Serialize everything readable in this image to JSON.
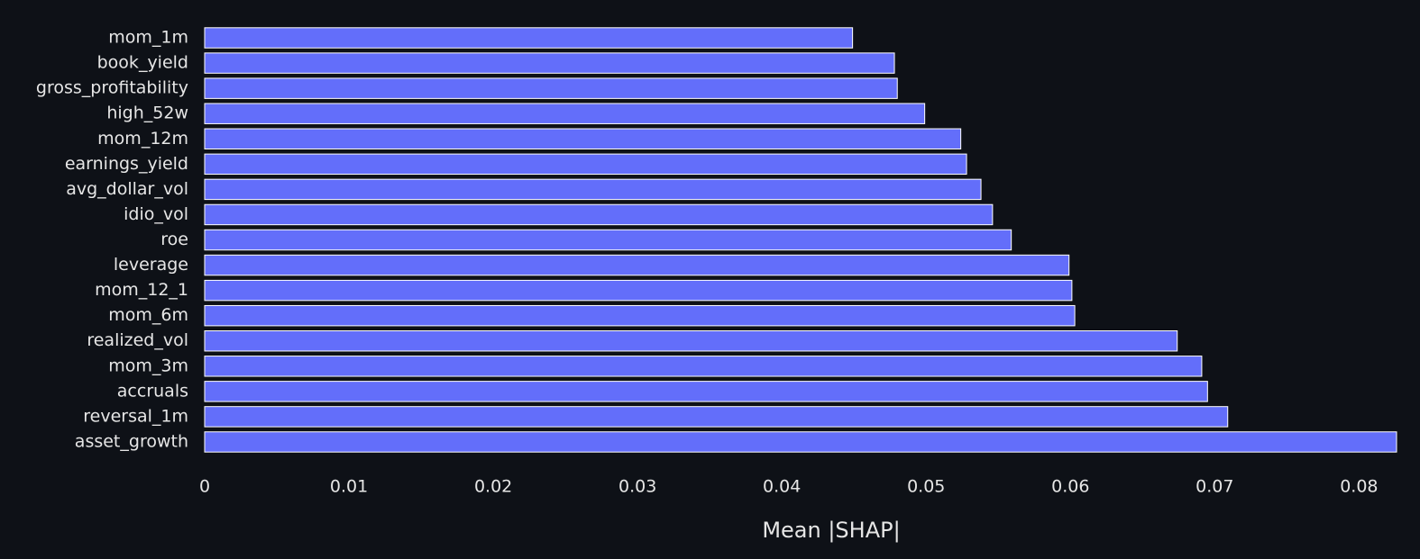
{
  "chart_data": {
    "type": "bar",
    "orientation": "horizontal",
    "x_label": "Mean |SHAP|",
    "categories": [
      "mom_1m",
      "book_yield",
      "gross_profitability",
      "high_52w",
      "mom_12m",
      "earnings_yield",
      "avg_dollar_vol",
      "idio_vol",
      "roe",
      "leverage",
      "mom_12_1",
      "mom_6m",
      "realized_vol",
      "mom_3m",
      "accruals",
      "reversal_1m",
      "asset_growth"
    ],
    "values": [
      0.0449,
      0.0478,
      0.048,
      0.0499,
      0.0524,
      0.0528,
      0.0538,
      0.0546,
      0.0559,
      0.0599,
      0.0601,
      0.0603,
      0.0674,
      0.0691,
      0.0695,
      0.0709,
      0.0826
    ],
    "color": "#636efa",
    "xlim": [
      0,
      0.0826
    ],
    "xticks": [
      0,
      0.01,
      0.02,
      0.03,
      0.04,
      0.05,
      0.06,
      0.07,
      0.08
    ],
    "grid": false
  }
}
